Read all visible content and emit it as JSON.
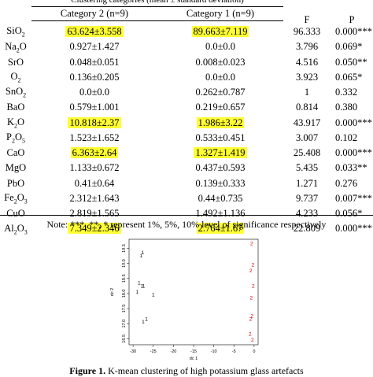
{
  "table": {
    "group_header": "Clustering categories (mean ± standard deviation)",
    "col_cat2": "Category 2 (n=9)",
    "col_cat1": "Category 1 (n=9)",
    "col_f": "F",
    "col_p": "P",
    "rows": [
      {
        "oxide_base": "SiO",
        "oxide_sub": "2",
        "oxide_rest": "",
        "cat2": "63.624±3.558",
        "cat2_hl": true,
        "cat1": "89.663±7.119",
        "cat1_hl": true,
        "f": "96.333",
        "p": "0.000***"
      },
      {
        "oxide_base": "Na",
        "oxide_sub": "2",
        "oxide_rest": "O",
        "cat2": "0.927±1.427",
        "cat2_hl": false,
        "cat1": "0.0±0.0",
        "cat1_hl": false,
        "f": "3.796",
        "p": "0.069*"
      },
      {
        "oxide_base": "SrO",
        "oxide_sub": "",
        "oxide_rest": "",
        "cat2": "0.048±0.051",
        "cat2_hl": false,
        "cat1": "0.008±0.023",
        "cat1_hl": false,
        "f": "4.516",
        "p": "0.050**"
      },
      {
        "oxide_base": "O",
        "oxide_sub": "2",
        "oxide_rest": "",
        "cat2": "0.136±0.205",
        "cat2_hl": false,
        "cat1": "0.0±0.0",
        "cat1_hl": false,
        "f": "3.923",
        "p": "0.065*"
      },
      {
        "oxide_base": "SnO",
        "oxide_sub": "2",
        "oxide_rest": "",
        "cat2": "0.0±0.0",
        "cat2_hl": false,
        "cat1": "0.262±0.787",
        "cat1_hl": false,
        "f": "1",
        "p": "0.332"
      },
      {
        "oxide_base": "BaO",
        "oxide_sub": "",
        "oxide_rest": "",
        "cat2": "0.579±1.001",
        "cat2_hl": false,
        "cat1": "0.219±0.657",
        "cat1_hl": false,
        "f": "0.814",
        "p": "0.380"
      },
      {
        "oxide_base": "K",
        "oxide_sub": "2",
        "oxide_rest": "O",
        "cat2": "10.818±2.37",
        "cat2_hl": true,
        "cat1": "1.986±3.22",
        "cat1_hl": true,
        "f": "43.917",
        "p": "0.000***"
      },
      {
        "oxide_base": "P",
        "oxide_sub": "2",
        "oxide_rest": "O",
        "oxide_sub2": "5",
        "cat2": "1.523±1.652",
        "cat2_hl": false,
        "cat1": "0.533±0.451",
        "cat1_hl": false,
        "f": "3.007",
        "p": "0.102"
      },
      {
        "oxide_base": "CaO",
        "oxide_sub": "",
        "oxide_rest": "",
        "cat2": "6.363±2.64",
        "cat2_hl": true,
        "cat1": "1.327±1.419",
        "cat1_hl": true,
        "f": "25.408",
        "p": "0.000***"
      },
      {
        "oxide_base": "MgO",
        "oxide_sub": "",
        "oxide_rest": "",
        "cat2": "1.133±0.672",
        "cat2_hl": false,
        "cat1": "0.437±0.593",
        "cat1_hl": false,
        "f": "5.435",
        "p": "0.033**"
      },
      {
        "oxide_base": "PbO",
        "oxide_sub": "",
        "oxide_rest": "",
        "cat2": "0.41±0.64",
        "cat2_hl": false,
        "cat1": "0.139±0.333",
        "cat1_hl": false,
        "f": "1.271",
        "p": "0.276"
      },
      {
        "oxide_base": "Fe",
        "oxide_sub": "2",
        "oxide_rest": "O",
        "oxide_sub2": "3",
        "cat2": "2.312±1.643",
        "cat2_hl": false,
        "cat1": "0.44±0.735",
        "cat1_hl": false,
        "f": "9.737",
        "p": "0.007***"
      },
      {
        "oxide_base": "CuO",
        "oxide_sub": "",
        "oxide_rest": "",
        "cat2": "2.819±1.565",
        "cat2_hl": false,
        "cat1": "1.492±1.136",
        "cat1_hl": false,
        "f": "4.233",
        "p": "0.056*"
      },
      {
        "oxide_base": "Al",
        "oxide_sub": "2",
        "oxide_rest": "O",
        "oxide_sub2": "3",
        "cat2": "7.349±2.346",
        "cat2_hl": true,
        "cat1": "2.764±1.67",
        "cat1_hl": true,
        "f": "22.809",
        "p": "0.000***"
      }
    ],
    "note": "Note: ***, **, * represent 1%, 5%, 10% level of significance respectively"
  },
  "chart_data": {
    "type": "scatter",
    "xlabel": "dc 1",
    "ylabel": "dc 2",
    "xticks": [
      "-30",
      "-25",
      "-20",
      "-15",
      "-10",
      "-5",
      "0"
    ],
    "yticks": [
      "16.5",
      "17.0",
      "17.5",
      "18.0",
      "18.5",
      "19.0",
      "19.5"
    ],
    "xlim": [
      -31,
      1
    ],
    "ylim": [
      16.3,
      19.8
    ],
    "series": [
      {
        "name": "1",
        "color": "#000000",
        "points": [
          [
            -28.0,
            19.2
          ],
          [
            -27.6,
            19.3
          ],
          [
            -28.5,
            18.3
          ],
          [
            -27.8,
            18.2
          ],
          [
            -27.4,
            18.2
          ],
          [
            -29.0,
            18.0
          ],
          [
            -25.0,
            17.9
          ],
          [
            -27.5,
            17.0
          ],
          [
            -26.7,
            17.1
          ]
        ]
      },
      {
        "name": "2",
        "color": "#cc0000",
        "points": [
          [
            -0.6,
            19.6
          ],
          [
            -0.3,
            18.9
          ],
          [
            -0.8,
            18.7
          ],
          [
            -0.2,
            18.2
          ],
          [
            -0.7,
            17.8
          ],
          [
            -0.5,
            17.2
          ],
          [
            -0.9,
            17.1
          ],
          [
            -1.0,
            16.6
          ],
          [
            -0.4,
            16.4
          ]
        ]
      }
    ]
  },
  "caption": {
    "label": "Figure 1.",
    "text": " K-mean clustering of high potassium glass artefacts"
  }
}
